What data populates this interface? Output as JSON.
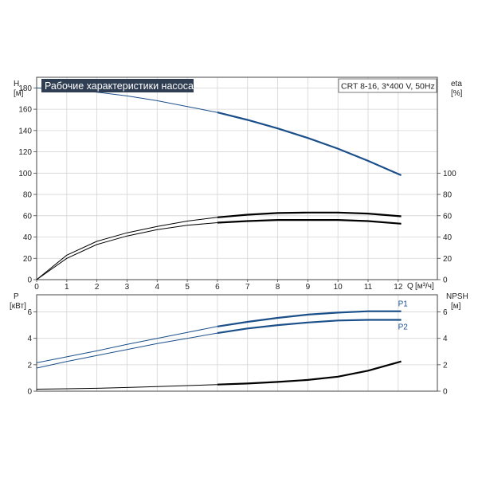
{
  "chart_data": [
    {
      "type": "line",
      "title": "Рабочие характеристики насоса",
      "model_label": "CRT 8-16, 3*400 V, 50Hz",
      "left_axis": {
        "label": "H",
        "unit": "[м]",
        "ylim": [
          0,
          190
        ],
        "ticks": [
          0,
          20,
          40,
          60,
          80,
          100,
          120,
          140,
          160,
          180
        ]
      },
      "right_axis": {
        "label": "eta",
        "unit": "[%]",
        "ylim": [
          0,
          190
        ],
        "ticks": [
          0,
          20,
          40,
          60,
          80,
          100
        ]
      },
      "x_axis": {
        "label": "Q",
        "unit": "[м³/ч]",
        "xlim": [
          0,
          13.3
        ],
        "ticks": [
          0,
          1,
          2,
          3,
          4,
          5,
          6,
          7,
          8,
          9,
          10,
          11,
          12
        ]
      },
      "grid": true,
      "series": [
        {
          "axis": "left",
          "role": "head",
          "color": "#1a4f8a",
          "x": [
            0,
            1,
            2,
            3,
            4,
            5,
            6,
            7,
            8,
            9,
            10,
            11,
            12.1
          ],
          "y": [
            180,
            178.5,
            176,
            172.5,
            168,
            162.5,
            157,
            150,
            142,
            133,
            123,
            111.5,
            98
          ]
        },
        {
          "axis": "right",
          "role": "efficiency-upper",
          "color": "#000000",
          "x": [
            0,
            1,
            2,
            3,
            4,
            5,
            6,
            7,
            8,
            9,
            10,
            11,
            12.1
          ],
          "y": [
            0,
            23,
            36,
            44,
            50,
            55,
            58.5,
            61,
            62.5,
            63,
            63,
            62,
            59.5
          ]
        },
        {
          "axis": "right",
          "role": "efficiency-lower",
          "color": "#000000",
          "x": [
            0,
            1,
            2,
            3,
            4,
            5,
            6,
            7,
            8,
            9,
            10,
            11,
            12.1
          ],
          "y": [
            0,
            20,
            33,
            41,
            47,
            51,
            53.5,
            55,
            56,
            56,
            56,
            55,
            52.5
          ]
        }
      ]
    },
    {
      "type": "line",
      "left_axis": {
        "label": "P",
        "unit": "[кВт]",
        "ylim": [
          0,
          7.3
        ],
        "ticks": [
          0,
          2,
          4,
          6
        ]
      },
      "right_axis": {
        "label": "NPSH",
        "unit": "[м]",
        "ylim": [
          0,
          7.3
        ],
        "ticks": [
          0,
          2,
          4,
          6
        ]
      },
      "x_axis": {
        "xlim": [
          0,
          13.3
        ]
      },
      "grid": true,
      "series": [
        {
          "name": "P1",
          "axis": "left",
          "color": "#1a4f8a",
          "x": [
            0,
            1,
            2,
            3,
            4,
            5,
            6,
            7,
            8,
            9,
            10,
            11,
            12.1
          ],
          "y": [
            2.15,
            2.6,
            3.05,
            3.55,
            4.0,
            4.45,
            4.9,
            5.25,
            5.55,
            5.8,
            5.95,
            6.05,
            6.05
          ]
        },
        {
          "name": "P2",
          "axis": "left",
          "color": "#1a4f8a",
          "x": [
            0,
            1,
            2,
            3,
            4,
            5,
            6,
            7,
            8,
            9,
            10,
            11,
            12.1
          ],
          "y": [
            1.75,
            2.25,
            2.7,
            3.15,
            3.6,
            4.0,
            4.4,
            4.75,
            5.0,
            5.2,
            5.35,
            5.4,
            5.4
          ]
        },
        {
          "axis": "right",
          "role": "npsh",
          "color": "#000000",
          "x": [
            0,
            1,
            2,
            3,
            4,
            5,
            6,
            7,
            8,
            9,
            10,
            11,
            12.1
          ],
          "y": [
            0.15,
            0.18,
            0.22,
            0.28,
            0.35,
            0.42,
            0.5,
            0.58,
            0.7,
            0.85,
            1.1,
            1.55,
            2.25
          ]
        }
      ]
    }
  ]
}
